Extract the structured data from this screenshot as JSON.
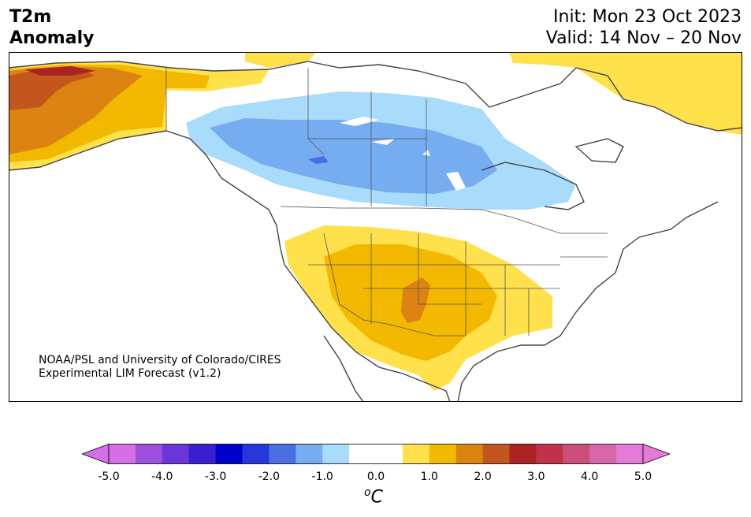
{
  "header": {
    "title_line1": "T2m",
    "title_line2": "Anomaly",
    "init": "Init: Mon 23 Oct 2023",
    "valid": "Valid: 14 Nov – 20 Nov"
  },
  "credit": {
    "line1": "NOAA/PSL and University of Colorado/CIRES",
    "line2": "Experimental LIM Forecast (v1.2)"
  },
  "colorbar": {
    "unit_base": "C",
    "unit_sup": "o",
    "ticks": [
      "-5.0",
      "-4.0",
      "-3.0",
      "-2.0",
      "-1.0",
      "0.0",
      "1.0",
      "2.0",
      "3.0",
      "4.0",
      "5.0"
    ],
    "colors": [
      "#d46fe8",
      "#9c51dd",
      "#6a36d8",
      "#3a1fd0",
      "#0000cc",
      "#2737d9",
      "#4b6ee3",
      "#76acf0",
      "#a9dbfa",
      "#ffffff",
      "#ffffff",
      "#ffe14c",
      "#f3b800",
      "#dc8411",
      "#c3561c",
      "#ab2323",
      "#c13249",
      "#cc4e7a",
      "#d767a9",
      "#e57bd6"
    ],
    "under_color": "#d46fe8",
    "over_color": "#e57bd6"
  },
  "colors": {
    "cold_light": "#a9dbfa",
    "cold_mid": "#76acf0",
    "warm_light": "#ffe14c",
    "warm_mid": "#f3b800",
    "warm_strong": "#dc8411",
    "warm_deep": "#c3561c",
    "warm_max": "#ab2323"
  }
}
